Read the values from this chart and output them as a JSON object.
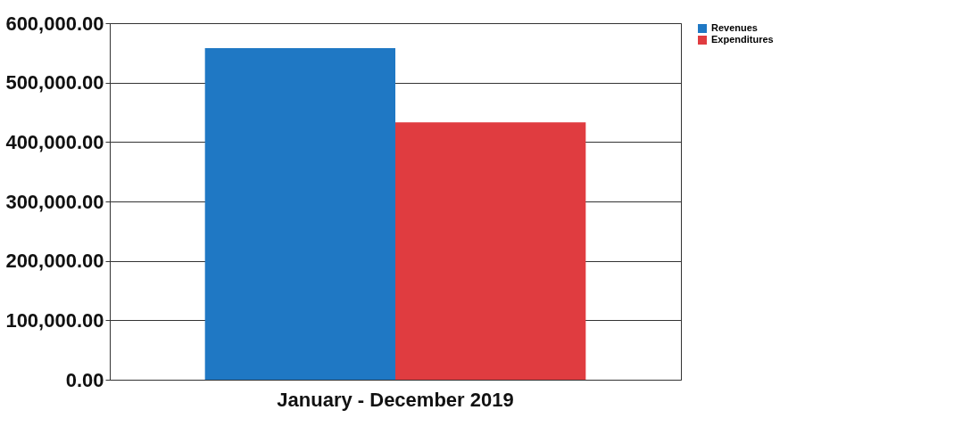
{
  "chart_data": {
    "type": "bar",
    "categories": [
      "January - December 2019"
    ],
    "series": [
      {
        "name": "Revenues",
        "color": "#1f78c4",
        "values": [
          558000
        ]
      },
      {
        "name": "Expenditures",
        "color": "#e03c40",
        "values": [
          433000
        ]
      }
    ],
    "ylim": [
      0,
      600000
    ],
    "yticks": [
      {
        "value": 0,
        "label": "0.00"
      },
      {
        "value": 100000,
        "label": "100,000.00"
      },
      {
        "value": 200000,
        "label": "200,000.00"
      },
      {
        "value": 300000,
        "label": "300,000.00"
      },
      {
        "value": 400000,
        "label": "400,000.00"
      },
      {
        "value": 500000,
        "label": "500,000.00"
      },
      {
        "value": 600000,
        "label": "600,000.00"
      }
    ],
    "grid": "y",
    "legend": "right"
  }
}
